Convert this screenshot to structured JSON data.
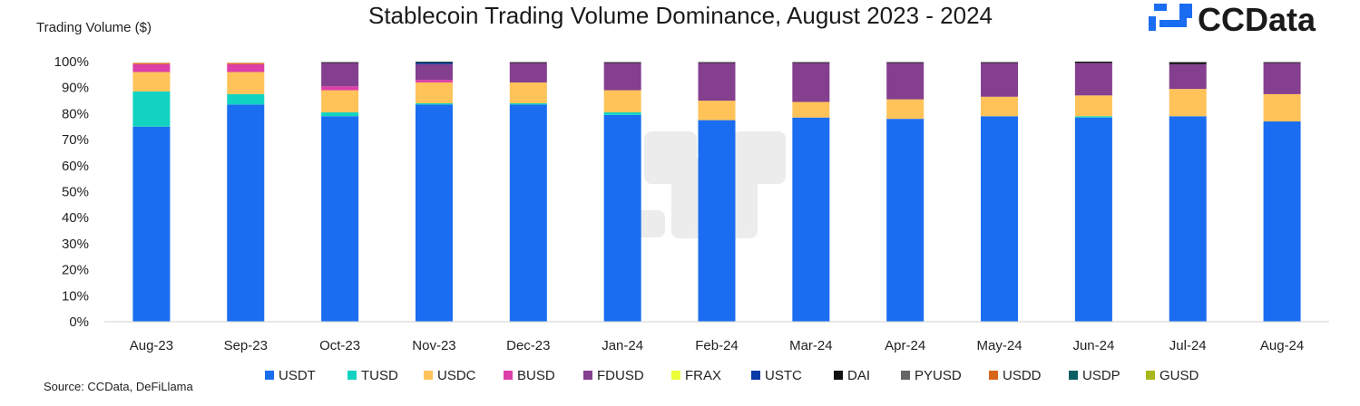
{
  "brand": {
    "name": "CCData",
    "logo_icon": "ccdata-logo-icon",
    "logo_color": "#1a6df0"
  },
  "source": "Source: CCData, DeFiLlama",
  "chart_data": {
    "type": "bar",
    "stacked": true,
    "title": "Stablecoin Trading Volume Dominance, August 2023 - 2024",
    "ylabel": "Trading Volume ($)",
    "xlabel": "",
    "ylim": [
      0,
      100
    ],
    "yticks": [
      "0%",
      "10%",
      "20%",
      "30%",
      "40%",
      "50%",
      "60%",
      "70%",
      "80%",
      "90%",
      "100%"
    ],
    "legend_position": "bottom",
    "categories": [
      "Aug-23",
      "Sep-23",
      "Oct-23",
      "Nov-23",
      "Dec-23",
      "Jan-24",
      "Feb-24",
      "Mar-24",
      "Apr-24",
      "May-24",
      "Jun-24",
      "Jul-24",
      "Aug-24"
    ],
    "series": [
      {
        "name": "USDT",
        "color": "#1a6df0",
        "values": [
          75,
          83.5,
          79,
          83.5,
          83.5,
          79.5,
          77.5,
          78.5,
          78,
          79,
          78.5,
          79,
          77
        ]
      },
      {
        "name": "TUSD",
        "color": "#12d3c1",
        "values": [
          13.5,
          4,
          1.5,
          0.5,
          0.5,
          1,
          0,
          0,
          0,
          0,
          0.5,
          0,
          0
        ]
      },
      {
        "name": "USDC",
        "color": "#ffc35a",
        "values": [
          7.5,
          8.5,
          8.5,
          8,
          8,
          8.5,
          7.5,
          6,
          7.5,
          7.5,
          8,
          10.5,
          10.5
        ]
      },
      {
        "name": "BUSD",
        "color": "#dd3fa8",
        "values": [
          3,
          3,
          1.5,
          1,
          0,
          0,
          0,
          0,
          0,
          0,
          0,
          0,
          0
        ]
      },
      {
        "name": "FDUSD",
        "color": "#843f8f",
        "values": [
          0,
          0,
          9,
          6,
          7.5,
          10.5,
          14.5,
          15,
          14,
          13,
          12.5,
          9.5,
          12
        ]
      },
      {
        "name": "FRAX",
        "color": "#eaff3a",
        "values": [
          0,
          0,
          0,
          0,
          0,
          0,
          0,
          0,
          0,
          0,
          0,
          0,
          0
        ]
      },
      {
        "name": "USTC",
        "color": "#0a3aa8",
        "values": [
          0,
          0,
          0,
          0.5,
          0,
          0,
          0,
          0,
          0,
          0,
          0,
          0,
          0
        ]
      },
      {
        "name": "DAI",
        "color": "#111111",
        "values": [
          0,
          0,
          0.3,
          0.3,
          0.3,
          0.3,
          0.3,
          0.3,
          0.3,
          0.3,
          0.5,
          0.8,
          0.3
        ]
      },
      {
        "name": "PYUSD",
        "color": "#666666",
        "values": [
          0,
          0,
          0,
          0,
          0,
          0,
          0,
          0,
          0,
          0,
          0,
          0,
          0
        ]
      },
      {
        "name": "USDD",
        "color": "#d9651c",
        "values": [
          0.5,
          0.5,
          0,
          0,
          0,
          0,
          0,
          0,
          0,
          0,
          0,
          0,
          0
        ]
      },
      {
        "name": "USDP",
        "color": "#0b5f63",
        "values": [
          0,
          0,
          0,
          0.2,
          0,
          0,
          0,
          0,
          0,
          0,
          0,
          0,
          0
        ]
      },
      {
        "name": "GUSD",
        "color": "#a8b81a",
        "values": [
          0,
          0,
          0,
          0,
          0,
          0,
          0,
          0,
          0,
          0,
          0,
          0,
          0
        ]
      }
    ]
  }
}
